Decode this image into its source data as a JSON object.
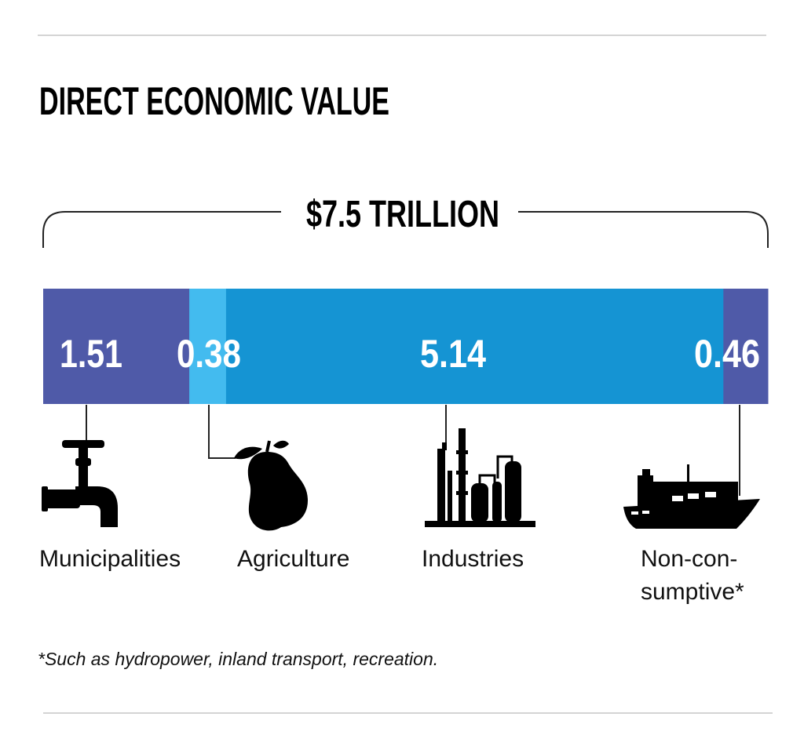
{
  "chart_data": {
    "type": "bar",
    "orientation": "horizontal-stacked",
    "title": "DIRECT ECONOMIC VALUE",
    "total_label": "$7.5 TRILLION",
    "total": 7.5,
    "categories": [
      "Municipalities",
      "Agriculture",
      "Industries",
      "Non-con- sumptive*"
    ],
    "category_lines": [
      [
        "Municipalities"
      ],
      [
        "Agriculture"
      ],
      [
        "Industries"
      ],
      [
        "Non-con-",
        "sumptive*"
      ]
    ],
    "values": [
      1.51,
      0.38,
      5.14,
      0.46
    ],
    "value_labels": [
      "1.51",
      "0.38",
      "5.14",
      "0.46"
    ],
    "icons": [
      "faucet-icon",
      "pear-icon",
      "factory-icon",
      "ship-icon"
    ],
    "colors": [
      "#4f5aa8",
      "#43bbef",
      "#1594d3",
      "#4f5aa8"
    ],
    "footnote": "*Such as hydropower, inland transport, recreation."
  }
}
